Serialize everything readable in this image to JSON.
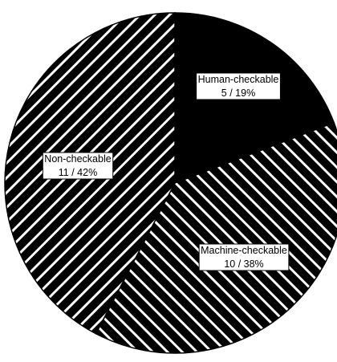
{
  "chart_data": {
    "type": "pie",
    "title": "",
    "slices": [
      {
        "label": "Human-checkable",
        "value": 5,
        "percent": 19,
        "display": "5 / 19%",
        "fill": "solid",
        "color": "#000000"
      },
      {
        "label": "Machine-checkable",
        "value": 10,
        "percent": 38,
        "display": "10 / 38%",
        "fill": "hatch-backslash",
        "color": "#000000"
      },
      {
        "label": "Non-checkable",
        "value": 11,
        "percent": 42,
        "display": "11 / 42%",
        "fill": "hatch-slash",
        "color": "#000000"
      }
    ],
    "start_angle_deg": 0,
    "direction": "clockwise",
    "legend": "none"
  },
  "colors": {
    "background": "#ffffff",
    "ink": "#000000",
    "hatch_line": "#ffffff"
  }
}
